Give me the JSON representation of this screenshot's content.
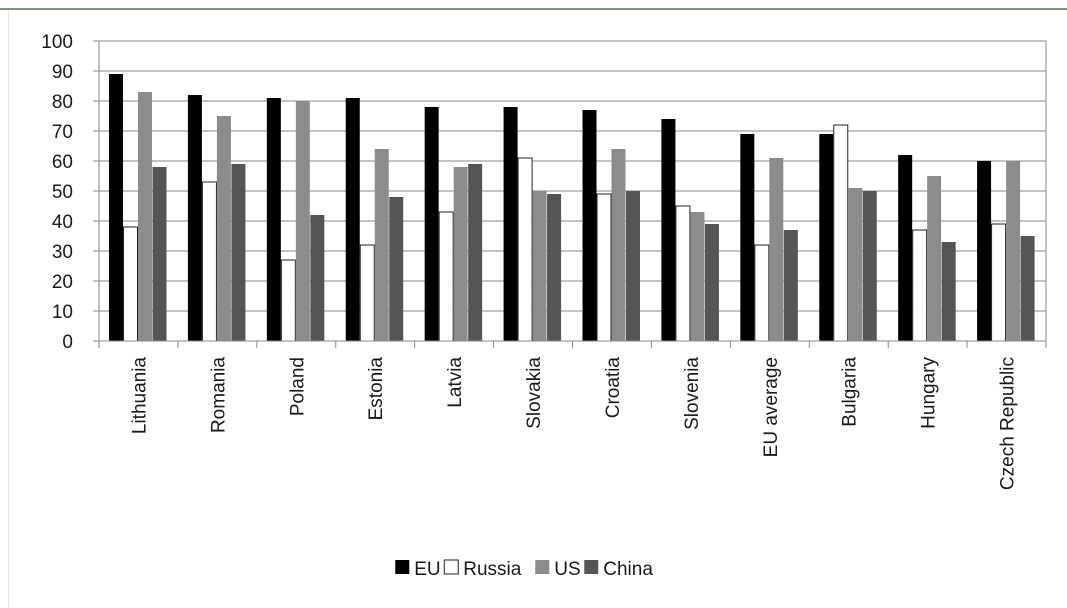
{
  "chart_data": {
    "type": "bar",
    "ylim": [
      0,
      100
    ],
    "yticks": [
      0,
      10,
      20,
      30,
      40,
      50,
      60,
      70,
      80,
      90,
      100
    ],
    "grid": true,
    "legend_position": "bottom",
    "categories": [
      "Lithuania",
      "Romania",
      "Poland",
      "Estonia",
      "Latvia",
      "Slovakia",
      "Croatia",
      "Slovenia",
      "EU average",
      "Bulgaria",
      "Hungary",
      "Czech Republic"
    ],
    "series": [
      {
        "name": "EU",
        "color": "#000000",
        "values": [
          89,
          82,
          81,
          81,
          78,
          78,
          77,
          74,
          69,
          69,
          62,
          60
        ]
      },
      {
        "name": "Russia",
        "color": "#ffffff",
        "values": [
          38,
          53,
          27,
          32,
          43,
          61,
          49,
          45,
          32,
          72,
          37,
          39
        ]
      },
      {
        "name": "US",
        "color": "#8c8c8c",
        "values": [
          83,
          75,
          80,
          64,
          58,
          50,
          64,
          43,
          61,
          51,
          55,
          60
        ]
      },
      {
        "name": "China",
        "color": "#555555",
        "values": [
          58,
          59,
          42,
          48,
          59,
          49,
          50,
          39,
          37,
          50,
          33,
          35
        ]
      }
    ]
  }
}
